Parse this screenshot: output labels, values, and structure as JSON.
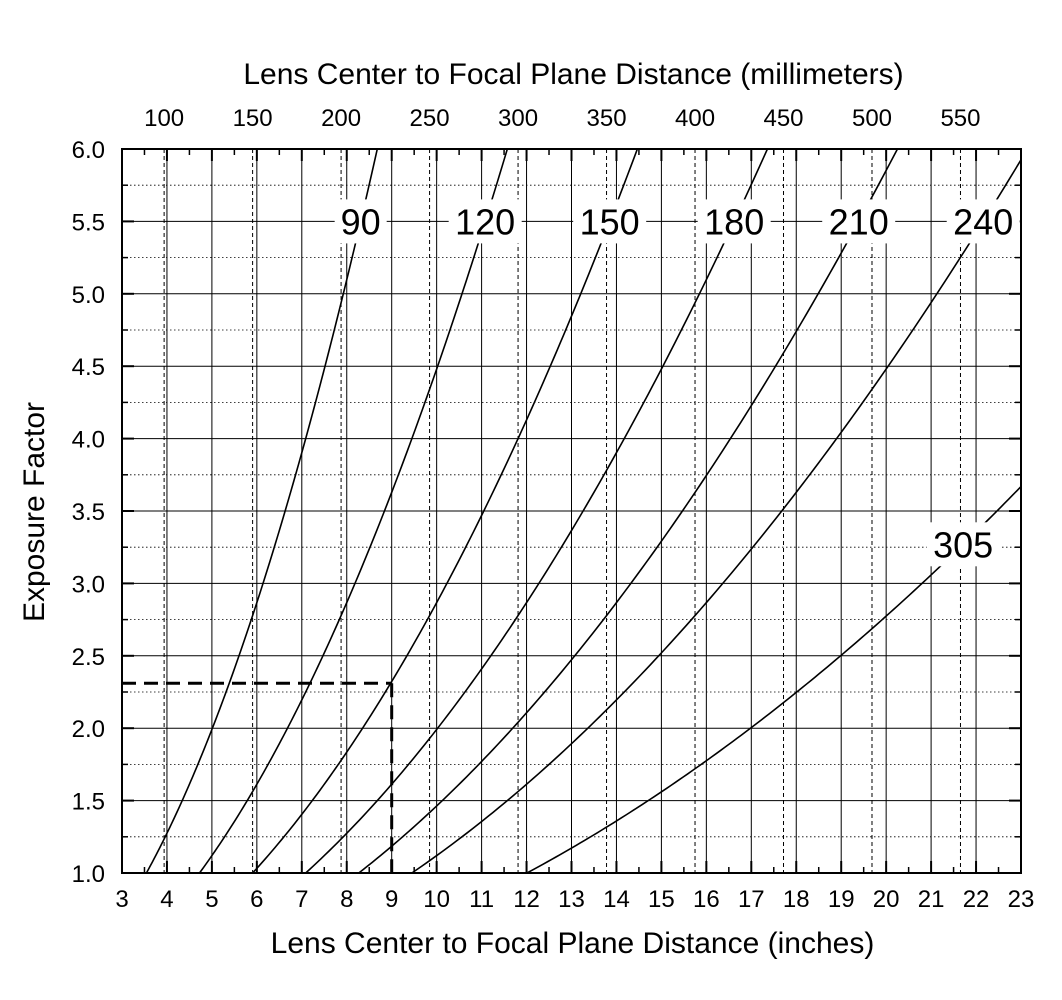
{
  "chart_data": {
    "type": "line",
    "title": "",
    "xlabel": "Lens Center to Focal Plane Distance (inches)",
    "x2label": "Lens Center to Focal Plane Distance (millimeters)",
    "ylabel": "Exposure Factor",
    "xlim": [
      3,
      23
    ],
    "ylim": [
      1.0,
      6.0
    ],
    "x_ticks": [
      "3",
      "4",
      "5",
      "6",
      "7",
      "8",
      "9",
      "10",
      "11",
      "12",
      "13",
      "14",
      "15",
      "16",
      "17",
      "18",
      "19",
      "20",
      "21",
      "22",
      "23"
    ],
    "y_ticks": [
      "1.0",
      "1.5",
      "2.0",
      "2.5",
      "3.0",
      "3.5",
      "4.0",
      "4.5",
      "5.0",
      "5.5",
      "6.0"
    ],
    "x2_ticks": [
      "100",
      "150",
      "200",
      "250",
      "300",
      "350",
      "400",
      "450",
      "500",
      "550"
    ],
    "grid": true,
    "series": [
      {
        "name": "90",
        "focal_length_mm": 90
      },
      {
        "name": "120",
        "focal_length_mm": 120
      },
      {
        "name": "150",
        "focal_length_mm": 150
      },
      {
        "name": "180",
        "focal_length_mm": 180
      },
      {
        "name": "210",
        "focal_length_mm": 210
      },
      {
        "name": "240",
        "focal_length_mm": 240
      },
      {
        "name": "305",
        "focal_length_mm": 305
      }
    ],
    "annotation": {
      "x": 9,
      "y": 2.31
    }
  }
}
